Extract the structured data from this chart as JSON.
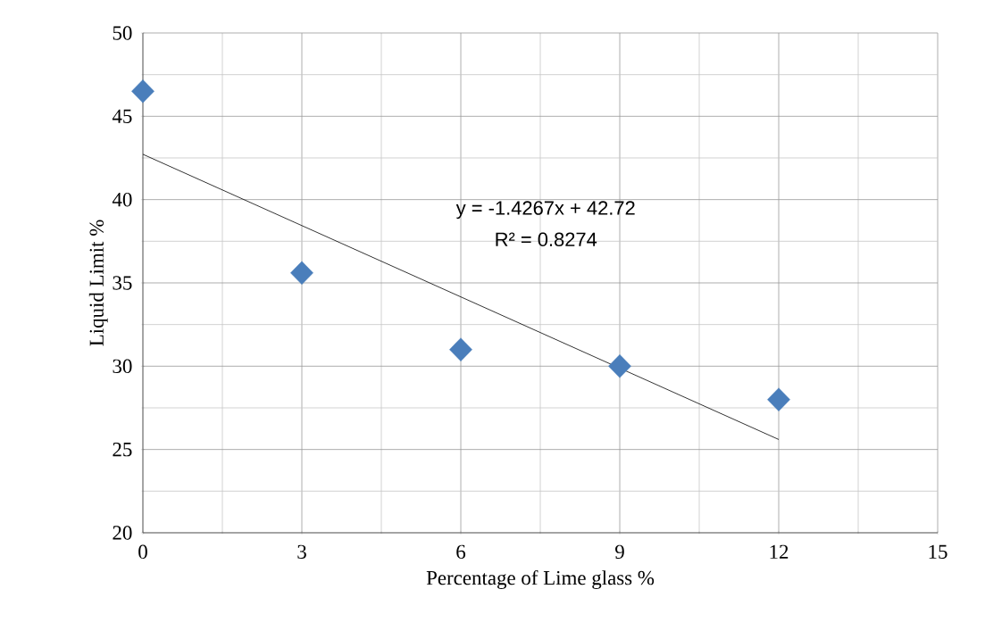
{
  "chart_data": {
    "type": "scatter",
    "xlabel": "Percentage of Lime glass %",
    "ylabel": "Liquid Limit %",
    "series": [
      {
        "color": "#4a7ebb",
        "marker": "diamond",
        "x": [
          0,
          3,
          6,
          9,
          12
        ],
        "values": [
          46.5,
          35.6,
          31.0,
          30.0,
          28.0
        ]
      },
      {
        "type": "line",
        "color": "#000000",
        "marker": "none",
        "x": [
          0,
          12
        ],
        "values": [
          42.72,
          25.6
        ]
      }
    ],
    "annotations": [
      "y = -1.4267x + 42.72",
      "R² = 0.8274"
    ],
    "xlim": [
      0,
      15
    ],
    "ylim": [
      20,
      50
    ],
    "xticks": [
      0,
      3,
      6,
      9,
      12,
      15
    ],
    "yticks": [
      20,
      25,
      30,
      35,
      40,
      45,
      50
    ],
    "grid": true
  }
}
